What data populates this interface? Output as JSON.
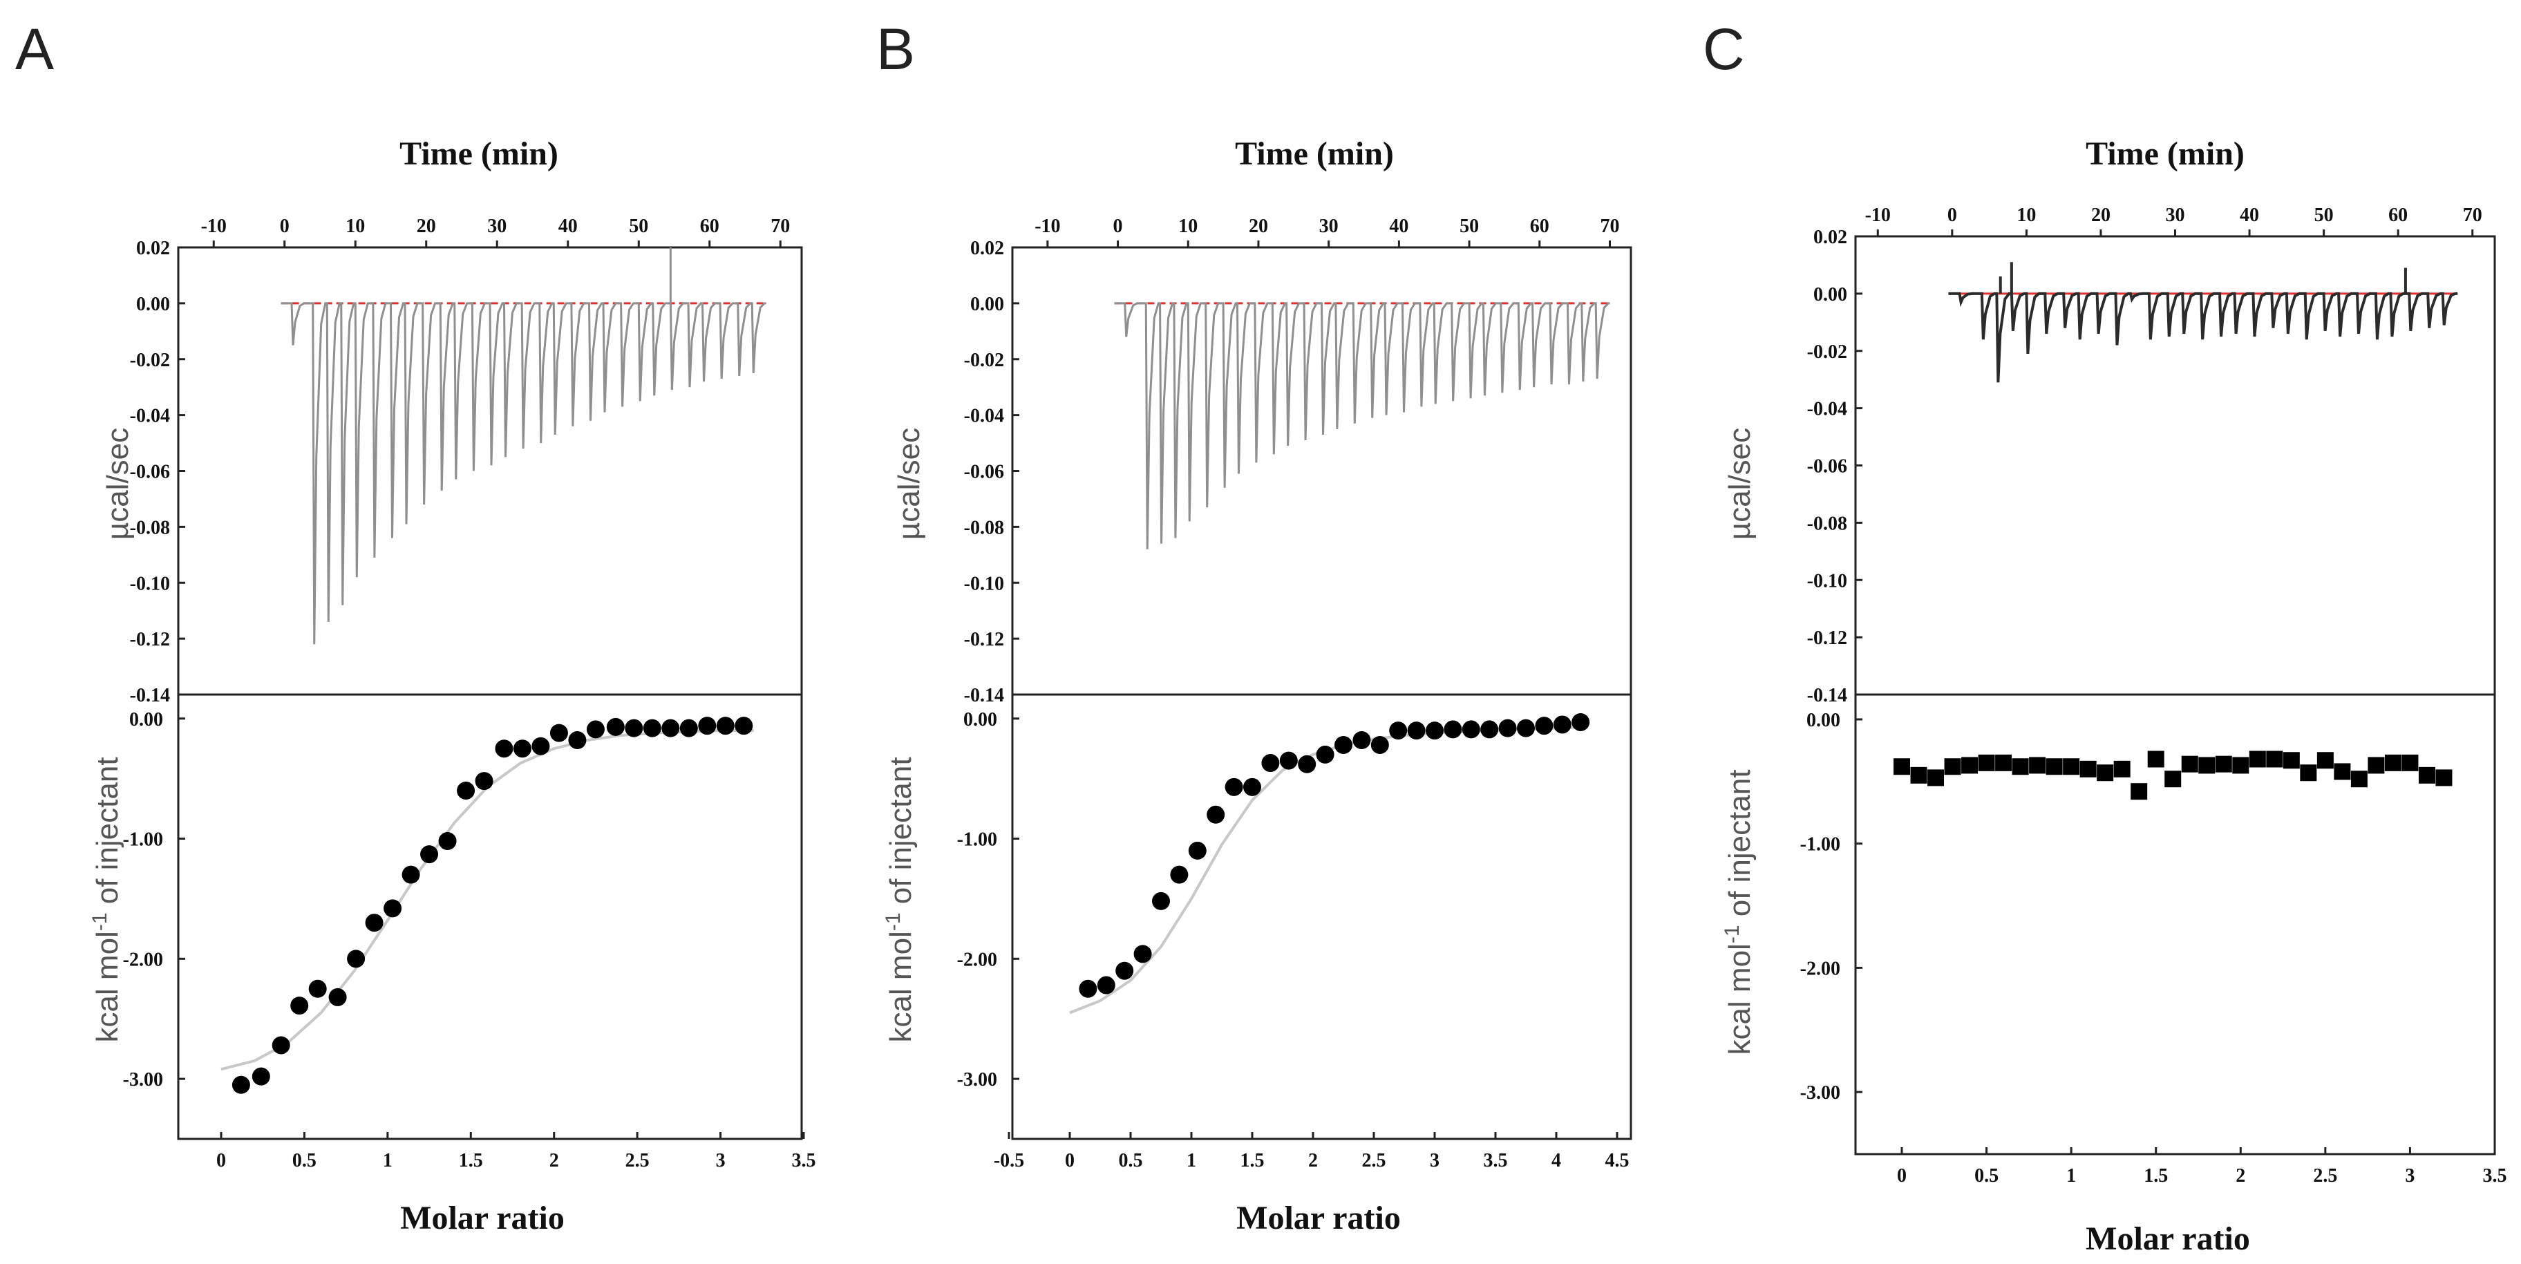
{
  "chart_data": [
    {
      "panel": "A",
      "type": "line",
      "top": {
        "title": "Time (min)",
        "ylabel": "µcal/sec",
        "x_ticks": [
          "-10",
          "0",
          "10",
          "20",
          "30",
          "40",
          "50",
          "60",
          "70"
        ],
        "y_ticks": [
          "0.02",
          "0.00",
          "-0.02",
          "-0.04",
          "-0.06",
          "-0.08",
          "-0.10",
          "-0.12",
          "-0.14"
        ],
        "xlim": [
          -15,
          73
        ],
        "ylim": [
          -0.14,
          0.02
        ],
        "injection_times": [
          1,
          4,
          6,
          8,
          10,
          12.5,
          15,
          17,
          19.5,
          22,
          24,
          26.5,
          29,
          31,
          33.5,
          36,
          38,
          40.5,
          43,
          45,
          47.5,
          50,
          52,
          54.5,
          57,
          59,
          61.5,
          64,
          66
        ],
        "peak_values": [
          -0.015,
          -0.122,
          -0.114,
          -0.108,
          -0.098,
          -0.091,
          -0.084,
          -0.079,
          -0.072,
          -0.067,
          -0.063,
          -0.06,
          -0.058,
          -0.055,
          -0.052,
          -0.05,
          -0.047,
          -0.044,
          -0.042,
          -0.039,
          -0.037,
          -0.035,
          -0.033,
          -0.031,
          -0.03,
          -0.028,
          -0.027,
          -0.026,
          -0.025
        ],
        "spike": {
          "time": 54.5,
          "value": 0.02
        }
      },
      "bottom": {
        "xlabel": "Molar ratio",
        "ylabel_main": "kcal mol",
        "ylabel_sup": "-1",
        "ylabel_rest": " of injectant",
        "x_ticks": [
          "0",
          "0.5",
          "1",
          "1.5",
          "2",
          "2.5",
          "3",
          "3.5"
        ],
        "y_ticks": [
          "0.00",
          "-1.00",
          "-2.00",
          "-3.00"
        ],
        "xlim": [
          -0.25,
          3.5
        ],
        "ylim": [
          -3.5,
          0.2
        ],
        "marker": "circle",
        "x": [
          0.12,
          0.24,
          0.36,
          0.47,
          0.58,
          0.7,
          0.81,
          0.92,
          1.03,
          1.14,
          1.25,
          1.36,
          1.47,
          1.58,
          1.7,
          1.81,
          1.92,
          2.03,
          2.14,
          2.25,
          2.37,
          2.48,
          2.59,
          2.7,
          2.81,
          2.92,
          3.03,
          3.14
        ],
        "y": [
          -3.05,
          -2.98,
          -2.72,
          -2.39,
          -2.25,
          -2.32,
          -2.0,
          -1.7,
          -1.58,
          -1.3,
          -1.13,
          -1.02,
          -0.6,
          -0.52,
          -0.25,
          -0.25,
          -0.23,
          -0.12,
          -0.18,
          -0.09,
          -0.07,
          -0.08,
          -0.08,
          -0.08,
          -0.08,
          -0.06,
          -0.06,
          -0.06
        ],
        "fit_x": [
          0,
          0.2,
          0.4,
          0.6,
          0.8,
          1,
          1.2,
          1.4,
          1.6,
          1.8,
          2,
          2.2,
          2.4,
          2.6,
          2.8,
          3,
          3.2
        ],
        "fit_y": [
          -2.92,
          -2.85,
          -2.7,
          -2.45,
          -2.1,
          -1.68,
          -1.25,
          -0.87,
          -0.57,
          -0.37,
          -0.25,
          -0.18,
          -0.14,
          -0.12,
          -0.11,
          -0.1,
          -0.1
        ]
      }
    },
    {
      "panel": "B",
      "type": "line",
      "top": {
        "title": "Time (min)",
        "ylabel": "µcal/sec",
        "x_ticks": [
          "-10",
          "0",
          "10",
          "20",
          "30",
          "40",
          "50",
          "60",
          "70"
        ],
        "y_ticks": [
          "0.02",
          "0.00",
          "-0.02",
          "-0.04",
          "-0.06",
          "-0.08",
          "-0.10",
          "-0.12",
          "-0.14"
        ],
        "xlim": [
          -15,
          73
        ],
        "ylim": [
          -0.14,
          0.02
        ],
        "injection_times": [
          1,
          4,
          6,
          8,
          10,
          12.5,
          15,
          17,
          19.5,
          22,
          24,
          26.5,
          29,
          31,
          33.5,
          36,
          38,
          40.5,
          43,
          45,
          47.5,
          50,
          52,
          54.5,
          57,
          59,
          61.5,
          64,
          66,
          68
        ],
        "peak_values": [
          -0.012,
          -0.088,
          -0.086,
          -0.084,
          -0.078,
          -0.073,
          -0.066,
          -0.061,
          -0.057,
          -0.054,
          -0.051,
          -0.049,
          -0.047,
          -0.045,
          -0.043,
          -0.041,
          -0.04,
          -0.039,
          -0.037,
          -0.036,
          -0.035,
          -0.034,
          -0.033,
          -0.032,
          -0.031,
          -0.03,
          -0.029,
          -0.029,
          -0.028,
          -0.027
        ]
      },
      "bottom": {
        "xlabel": "Molar ratio",
        "ylabel_main": "kcal mol",
        "ylabel_sup": "-1",
        "ylabel_rest": " of injectant",
        "x_ticks": [
          "-0.5",
          "0",
          "0.5",
          "1",
          "1.5",
          "2",
          "2.5",
          "3",
          "3.5",
          "4",
          "4.5"
        ],
        "y_ticks": [
          "0.00",
          "-1.00",
          "-2.00",
          "-3.00"
        ],
        "xlim": [
          -0.5,
          4.6
        ],
        "ylim": [
          -3.5,
          0.2
        ],
        "marker": "circle",
        "x": [
          0.15,
          0.3,
          0.45,
          0.6,
          0.75,
          0.9,
          1.05,
          1.2,
          1.35,
          1.5,
          1.65,
          1.8,
          1.95,
          2.1,
          2.25,
          2.4,
          2.55,
          2.7,
          2.85,
          3.0,
          3.15,
          3.3,
          3.45,
          3.6,
          3.75,
          3.9,
          4.05,
          4.2
        ],
        "y": [
          -2.25,
          -2.22,
          -2.1,
          -1.96,
          -1.52,
          -1.3,
          -1.1,
          -0.8,
          -0.57,
          -0.57,
          -0.37,
          -0.35,
          -0.38,
          -0.3,
          -0.22,
          -0.18,
          -0.22,
          -0.1,
          -0.1,
          -0.1,
          -0.09,
          -0.09,
          -0.09,
          -0.08,
          -0.08,
          -0.06,
          -0.05,
          -0.03
        ],
        "fit_x": [
          0,
          0.25,
          0.5,
          0.75,
          1,
          1.25,
          1.5,
          1.75,
          2,
          2.25,
          2.5,
          2.75,
          3,
          3.25,
          3.5,
          3.75,
          4,
          4.25
        ],
        "fit_y": [
          -2.45,
          -2.35,
          -2.18,
          -1.9,
          -1.5,
          -1.05,
          -0.68,
          -0.43,
          -0.3,
          -0.22,
          -0.17,
          -0.14,
          -0.12,
          -0.11,
          -0.1,
          -0.09,
          -0.08,
          -0.07
        ]
      }
    },
    {
      "panel": "C",
      "type": "line",
      "top": {
        "title": "Time (min)",
        "ylabel": "µcal/sec",
        "x_ticks": [
          "-10",
          "0",
          "10",
          "20",
          "30",
          "40",
          "50",
          "60",
          "70"
        ],
        "y_ticks": [
          "0.02",
          "0.00",
          "-0.02",
          "-0.04",
          "-0.06",
          "-0.08",
          "-0.10",
          "-0.12",
          "-0.14"
        ],
        "xlim": [
          -13,
          73
        ],
        "ylim": [
          -0.14,
          0.02
        ],
        "injection_times": [
          1,
          4,
          6,
          8,
          10,
          12.5,
          15,
          17,
          19.5,
          22,
          24,
          26.5,
          29,
          31,
          33.5,
          36,
          38,
          40.5,
          43,
          45,
          47.5,
          50,
          52,
          54.5,
          57,
          59,
          61.5,
          64,
          66
        ],
        "peak_values": [
          -0.003,
          -0.016,
          -0.031,
          -0.013,
          -0.021,
          -0.014,
          -0.012,
          -0.016,
          -0.014,
          -0.018,
          -0.002,
          -0.016,
          -0.015,
          -0.014,
          -0.016,
          -0.015,
          -0.014,
          -0.015,
          -0.012,
          -0.014,
          -0.016,
          -0.013,
          -0.015,
          -0.014,
          -0.016,
          -0.015,
          -0.013,
          -0.012,
          -0.011
        ],
        "spikes": [
          {
            "time": 6.5,
            "value": 0.006
          },
          {
            "time": 8,
            "value": 0.011
          },
          {
            "time": 61,
            "value": 0.009
          }
        ]
      },
      "bottom": {
        "xlabel": "Molar ratio",
        "ylabel_main": "kcal mol",
        "ylabel_sup": "-1",
        "ylabel_rest": " of injectant",
        "x_ticks": [
          "0",
          "0.5",
          "1",
          "1.5",
          "2",
          "2.5",
          "3",
          "3.5"
        ],
        "y_ticks": [
          "0.00",
          "-1.00",
          "-2.00",
          "-3.00"
        ],
        "xlim": [
          -0.25,
          3.5
        ],
        "ylim": [
          -3.5,
          0.2
        ],
        "marker": "square",
        "x": [
          0,
          0.1,
          0.2,
          0.3,
          0.4,
          0.5,
          0.6,
          0.7,
          0.8,
          0.9,
          1.0,
          1.1,
          1.2,
          1.3,
          1.4,
          1.5,
          1.6,
          1.7,
          1.8,
          1.9,
          2.0,
          2.1,
          2.2,
          2.3,
          2.4,
          2.5,
          2.6,
          2.7,
          2.8,
          2.9,
          3.0,
          3.1,
          3.2
        ],
        "y": [
          -0.38,
          -0.45,
          -0.47,
          -0.38,
          -0.37,
          -0.35,
          -0.35,
          -0.38,
          -0.37,
          -0.38,
          -0.38,
          -0.4,
          -0.43,
          -0.4,
          -0.58,
          -0.32,
          -0.48,
          -0.36,
          -0.37,
          -0.36,
          -0.37,
          -0.32,
          -0.32,
          -0.33,
          -0.43,
          -0.33,
          -0.42,
          -0.48,
          -0.37,
          -0.35,
          -0.35,
          -0.45,
          -0.47
        ]
      }
    }
  ],
  "panels": [
    {
      "letter": "A",
      "top_title": "Time (min)",
      "top_ylabel": "µcal/sec",
      "bottom_xlabel": "Molar ratio"
    },
    {
      "letter": "B",
      "top_title": "Time (min)",
      "top_ylabel": "µcal/sec",
      "bottom_xlabel": "Molar ratio"
    },
    {
      "letter": "C",
      "top_title": "Time (min)",
      "top_ylabel": "µcal/sec",
      "bottom_xlabel": "Molar ratio"
    }
  ],
  "colors": {
    "trace": "#8f8f8f",
    "trace_dark": "#2b2b2b",
    "baseline": "#e03030",
    "fit": "#c8c8c8",
    "marker": "#000000",
    "frame": "#222222"
  }
}
